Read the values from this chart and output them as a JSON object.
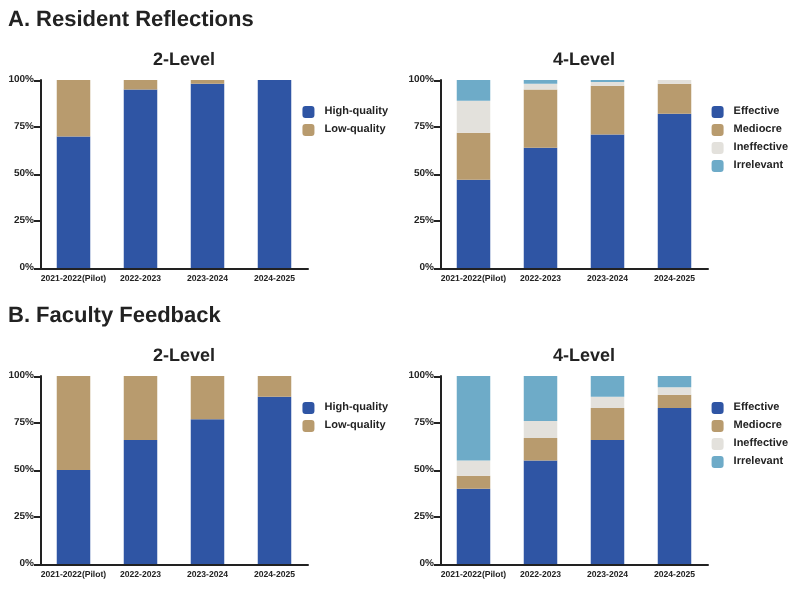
{
  "chart_data": [
    {
      "type": "bar",
      "stacked": true,
      "title": "2-Level",
      "annotations": [
        "A. Resident Reflections"
      ],
      "categories": [
        "2021-2022(Pilot)",
        "2022-2023",
        "2023-2024",
        "2024-2025"
      ],
      "ylim": [
        0,
        100
      ],
      "yticks": [
        {
          "value": 0,
          "label": "0%"
        },
        {
          "value": 25,
          "label": "25%"
        },
        {
          "value": 50,
          "label": "50%"
        },
        {
          "value": 75,
          "label": "75%"
        },
        {
          "value": 100,
          "label": "100%"
        }
      ],
      "grid": false,
      "legend": "right",
      "series": [
        {
          "name": "High-quality",
          "color": "#2f55a4",
          "values": [
            70,
            95,
            98,
            100
          ]
        },
        {
          "name": "Low-quality",
          "color": "#b89b6e",
          "values": [
            30,
            5,
            2,
            0
          ]
        }
      ]
    },
    {
      "type": "bar",
      "stacked": true,
      "title": "4-Level",
      "categories": [
        "2021-2022(Pilot)",
        "2022-2023",
        "2023-2024",
        "2024-2025"
      ],
      "ylim": [
        0,
        100
      ],
      "yticks": [
        {
          "value": 0,
          "label": "0%"
        },
        {
          "value": 25,
          "label": "25%"
        },
        {
          "value": 50,
          "label": "50%"
        },
        {
          "value": 75,
          "label": "75%"
        },
        {
          "value": 100,
          "label": "100%"
        }
      ],
      "grid": false,
      "legend": "right",
      "series": [
        {
          "name": "Effective",
          "color": "#2f55a4",
          "values": [
            47,
            64,
            71,
            82
          ]
        },
        {
          "name": "Mediocre",
          "color": "#b89b6e",
          "values": [
            25,
            31,
            26,
            16
          ]
        },
        {
          "name": "Ineffective",
          "color": "#e3e1dc",
          "values": [
            17,
            3,
            2,
            2
          ]
        },
        {
          "name": "Irrelevant",
          "color": "#6eabc8",
          "values": [
            11,
            2,
            1,
            0
          ]
        }
      ]
    },
    {
      "type": "bar",
      "stacked": true,
      "title": "2-Level",
      "annotations": [
        "B. Faculty Feedback"
      ],
      "categories": [
        "2021-2022(Pilot)",
        "2022-2023",
        "2023-2024",
        "2024-2025"
      ],
      "ylim": [
        0,
        100
      ],
      "yticks": [
        {
          "value": 0,
          "label": "0%"
        },
        {
          "value": 25,
          "label": "25%"
        },
        {
          "value": 50,
          "label": "50%"
        },
        {
          "value": 75,
          "label": "75%"
        },
        {
          "value": 100,
          "label": "100%"
        }
      ],
      "grid": false,
      "legend": "right",
      "series": [
        {
          "name": "High-quality",
          "color": "#2f55a4",
          "values": [
            50,
            66,
            77,
            89
          ]
        },
        {
          "name": "Low-quality",
          "color": "#b89b6e",
          "values": [
            50,
            34,
            23,
            11
          ]
        }
      ]
    },
    {
      "type": "bar",
      "stacked": true,
      "title": "4-Level",
      "categories": [
        "2021-2022(Pilot)",
        "2022-2023",
        "2023-2024",
        "2024-2025"
      ],
      "ylim": [
        0,
        100
      ],
      "yticks": [
        {
          "value": 0,
          "label": "0%"
        },
        {
          "value": 25,
          "label": "25%"
        },
        {
          "value": 50,
          "label": "50%"
        },
        {
          "value": 75,
          "label": "75%"
        },
        {
          "value": 100,
          "label": "100%"
        }
      ],
      "grid": false,
      "legend": "right",
      "series": [
        {
          "name": "Effective",
          "color": "#2f55a4",
          "values": [
            40,
            55,
            66,
            83
          ]
        },
        {
          "name": "Mediocre",
          "color": "#b89b6e",
          "values": [
            7,
            12,
            17,
            7
          ]
        },
        {
          "name": "Ineffective",
          "color": "#e3e1dc",
          "values": [
            8,
            9,
            6,
            4
          ]
        },
        {
          "name": "Irrelevant",
          "color": "#6eabc8",
          "values": [
            45,
            24,
            11,
            6
          ]
        }
      ]
    }
  ]
}
